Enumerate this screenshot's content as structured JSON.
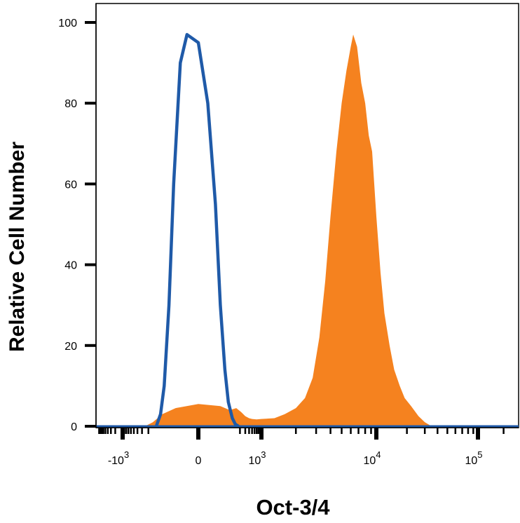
{
  "chart_data": {
    "type": "area",
    "title": "",
    "xlabel": "Oct-3/4",
    "ylabel": "Relative Cell Number",
    "x_scale": "biexponential",
    "ylim": [
      0,
      100
    ],
    "grid": false,
    "legend": "none",
    "y_ticks": [
      "0",
      "20",
      "40",
      "60",
      "80",
      "100"
    ],
    "x_ticks": [
      {
        "value": -1000,
        "base": "-10",
        "exp": "3"
      },
      {
        "value": 0,
        "base": "0",
        "exp": ""
      },
      {
        "value": 1000,
        "base": "10",
        "exp": "3"
      },
      {
        "value": 10000,
        "base": "10",
        "exp": "4"
      },
      {
        "value": 100000,
        "base": "10",
        "exp": "5"
      }
    ],
    "series": [
      {
        "style": "filled",
        "color": "#f5821f",
        "x": [
          -250,
          -150,
          -80,
          -30,
          0,
          40,
          90,
          150,
          220,
          300,
          400,
          500,
          700,
          1000,
          1300,
          1600,
          2000,
          2400,
          2800,
          3200,
          3600,
          4000,
          4500,
          5000,
          5500,
          6000,
          6300,
          6800,
          7400,
          8000,
          8600,
          9200,
          10000,
          11000,
          12000,
          13500,
          15000,
          17000,
          19000,
          22000,
          26000,
          30000,
          35000
        ],
        "values": [
          0,
          1,
          3,
          4.5,
          5.5,
          5,
          4,
          4.5,
          3.5,
          2.5,
          2,
          1.8,
          1.7,
          1.8,
          2,
          3,
          4.5,
          7,
          12,
          22,
          36,
          52,
          68,
          80,
          88,
          94,
          97,
          94,
          85,
          80,
          72,
          68,
          52,
          38,
          28,
          20,
          14,
          10,
          7,
          5,
          2.5,
          1,
          0
        ]
      },
      {
        "style": "line",
        "color": "#1f5aa8",
        "x": [
          -120,
          -90,
          -70,
          -50,
          -35,
          -20,
          -10,
          0,
          10,
          25,
          40,
          60,
          80,
          110,
          140,
          180
        ],
        "values": [
          0,
          3,
          10,
          30,
          60,
          90,
          97,
          95,
          80,
          55,
          30,
          14,
          6,
          2,
          0.5,
          0
        ]
      }
    ]
  }
}
